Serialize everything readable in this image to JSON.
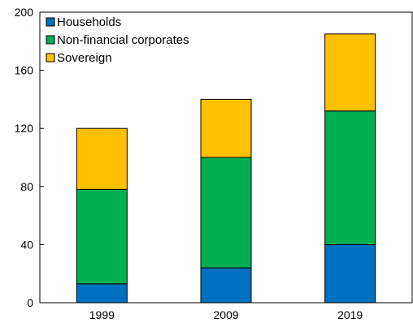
{
  "chart_data": {
    "type": "bar",
    "stacked": true,
    "categories": [
      "1999",
      "2009",
      "2019"
    ],
    "series": [
      {
        "name": "Households",
        "color": "#0070C0",
        "values": [
          13,
          24,
          40
        ]
      },
      {
        "name": "Non-financial corporates",
        "color": "#00B050",
        "values": [
          65,
          76,
          92
        ]
      },
      {
        "name": "Sovereign",
        "color": "#FFC000",
        "values": [
          42,
          40,
          53
        ]
      }
    ],
    "ylim": [
      0,
      200
    ],
    "yticks": [
      "0",
      "40",
      "80",
      "120",
      "160",
      "200"
    ],
    "grid": false,
    "legend_position": "top-left",
    "title": "",
    "xlabel": "",
    "ylabel": ""
  }
}
